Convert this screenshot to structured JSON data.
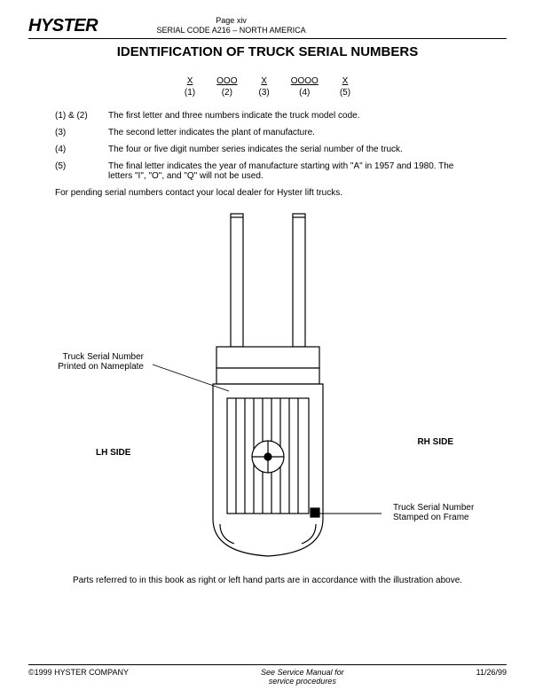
{
  "header": {
    "logo": "HYSTER",
    "page_label": "Page xiv",
    "serial_code": "SERIAL CODE A216 – NORTH AMERICA"
  },
  "title": "IDENTIFICATION OF TRUCK SERIAL NUMBERS",
  "serial_pattern": [
    {
      "chars": "X",
      "index": "(1)"
    },
    {
      "chars": "OOO",
      "index": "(2)"
    },
    {
      "chars": "X",
      "index": "(3)"
    },
    {
      "chars": "OOOO",
      "index": "(4)"
    },
    {
      "chars": "X",
      "index": "(5)"
    }
  ],
  "descriptions": [
    {
      "num": "(1) & (2)",
      "text": "The first letter and three numbers indicate the truck model code."
    },
    {
      "num": "(3)",
      "text": "The second letter indicates the plant of manufacture."
    },
    {
      "num": "(4)",
      "text": "The four or five digit number series indicates the serial number of the truck."
    },
    {
      "num": "(5)",
      "text": "The final letter indicates the year of manufacture starting with \"A\" in 1957 and 1980. The letters \"I\", \"O\", and \"Q\" will not be used."
    }
  ],
  "pending_text": "For pending serial numbers contact your local dealer for Hyster lift trucks.",
  "diagram": {
    "lh_label": "LH SIDE",
    "rh_label": "RH SIDE",
    "nameplate_label": "Truck Serial Number Printed on Nameplate",
    "frame_label": "Truck Serial Number Stamped on Frame",
    "stroke_color": "#000000",
    "fill_color": "#ffffff",
    "stroke_width": 1.2
  },
  "footnote": "Parts referred to in this book as right or left hand parts are in accordance with the illustration above.",
  "footer": {
    "left": "©1999 HYSTER COMPANY",
    "center1": "See Service Manual for",
    "center2": "service procedures",
    "right": "11/26/99"
  }
}
